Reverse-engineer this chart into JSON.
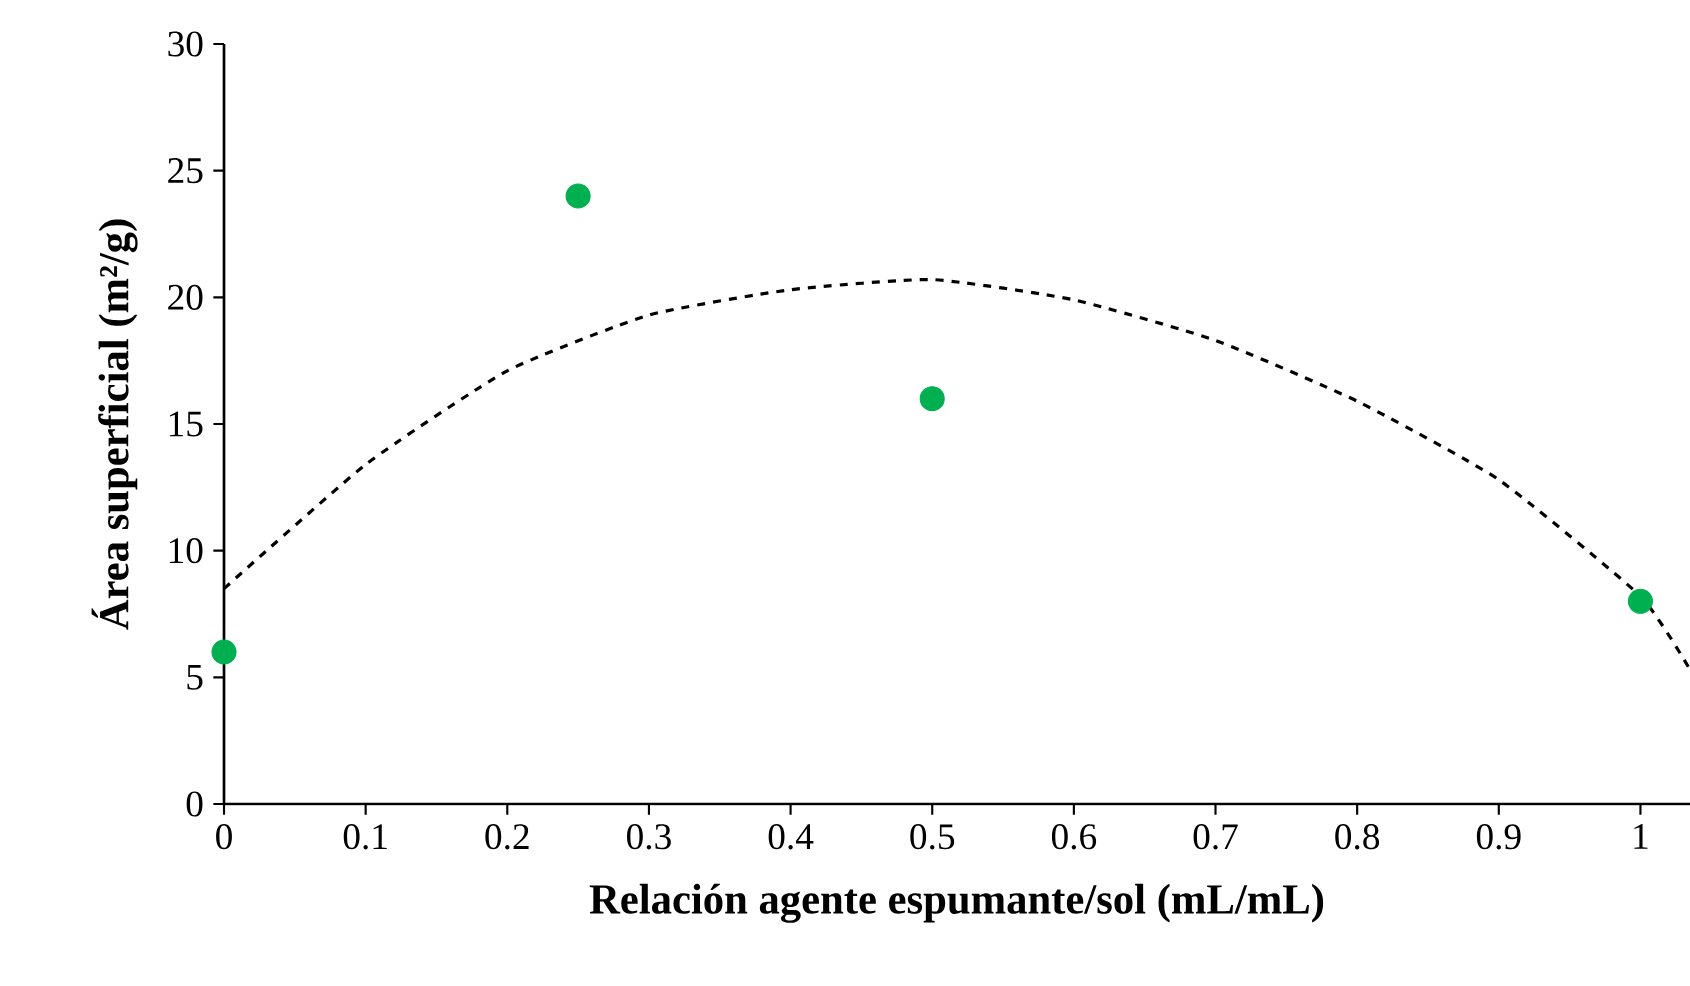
{
  "chart_data": {
    "type": "scatter",
    "xlabel": "Relación agente espumante/sol (mL/mL)",
    "ylabel": "Área superficial (m²/g)",
    "x": [
      0,
      0.25,
      0.5,
      1
    ],
    "series": [
      {
        "color": "#00b050",
        "marker": "circle",
        "values": [
          6,
          24,
          16,
          8
        ]
      },
      {
        "type": "line",
        "color": "#000000",
        "marker": "none",
        "line_style": "dashed",
        "x": [
          0,
          0.1,
          0.2,
          0.3,
          0.4,
          0.5,
          0.6,
          0.7,
          0.8,
          0.9,
          1,
          1.035
        ],
        "values": [
          8.5,
          13.4,
          17.1,
          19.3,
          20.3,
          20.7,
          19.9,
          18.3,
          15.9,
          12.8,
          8.2,
          5.3
        ]
      }
    ],
    "grid": false,
    "xlim": [
      0,
      1.035
    ],
    "ylim": [
      0,
      30
    ],
    "xticks": [
      0,
      0.1,
      0.2,
      0.3,
      0.4,
      0.5,
      0.6,
      0.7,
      0.8,
      0.9,
      1
    ],
    "yticks": [
      0,
      5,
      10,
      15,
      20,
      25,
      30
    ]
  }
}
